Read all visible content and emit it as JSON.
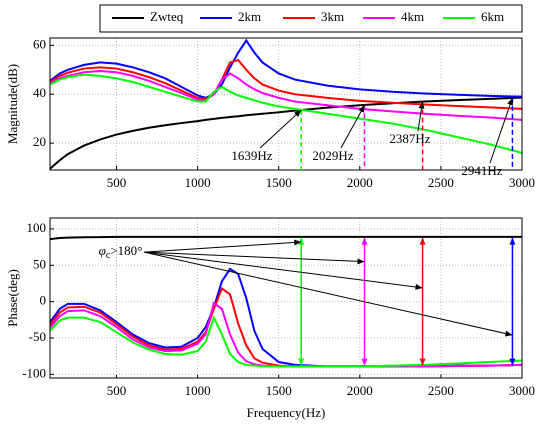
{
  "chart_data": [
    {
      "type": "line",
      "ylabel": "Magnitude(dB)",
      "x": [
        90,
        150,
        200,
        300,
        400,
        500,
        600,
        700,
        800,
        900,
        1000,
        1050,
        1100,
        1150,
        1200,
        1250,
        1300,
        1350,
        1400,
        1500,
        1600,
        1800,
        2000,
        2200,
        2400,
        2600,
        2800,
        3000
      ],
      "xlim": [
        90,
        3000
      ],
      "xticks": [
        500,
        1000,
        1500,
        2000,
        2500,
        3000
      ],
      "ylim": [
        9,
        63
      ],
      "yticks": [
        20,
        40,
        60
      ],
      "grid": true,
      "series": [
        {
          "name": "Zwteq",
          "color": "#000000",
          "values": [
            9.5,
            13,
            15.5,
            19,
            21.5,
            23.5,
            25,
            26.3,
            27.3,
            28.2,
            29,
            29.5,
            29.9,
            30.3,
            30.7,
            31,
            31.4,
            31.7,
            32,
            32.6,
            33.3,
            34.5,
            35.5,
            36.3,
            37,
            37.6,
            38.1,
            38.6
          ]
        },
        {
          "name": "2km",
          "color": "#0000ff",
          "values": [
            45.5,
            48.5,
            50,
            52,
            53,
            52.5,
            51,
            49,
            46.5,
            43,
            39.5,
            38.5,
            40,
            44,
            51,
            57,
            62,
            57,
            53,
            48.5,
            46,
            43.5,
            42,
            41,
            40.3,
            39.8,
            39.3,
            39
          ]
        },
        {
          "name": "3km",
          "color": "#ff0000",
          "values": [
            45,
            47.5,
            48.8,
            50.5,
            51,
            50.5,
            49,
            47,
            44.5,
            41.5,
            38.5,
            38,
            40,
            46,
            53,
            54,
            50,
            46.5,
            44,
            41.5,
            40,
            38.5,
            37.3,
            36.5,
            35.8,
            35.2,
            34.6,
            34
          ]
        },
        {
          "name": "4km",
          "color": "#ff00ff",
          "values": [
            44.5,
            46.5,
            47.5,
            49,
            49.5,
            49,
            47.5,
            45.5,
            43,
            40.5,
            37.8,
            37.5,
            40,
            46,
            48.5,
            46.5,
            44,
            42,
            40.5,
            38.5,
            37,
            35.5,
            34,
            33,
            32,
            31.2,
            30.5,
            29.5
          ]
        },
        {
          "name": "6km",
          "color": "#00ff00",
          "values": [
            44,
            46,
            47,
            48,
            47.5,
            46.5,
            45,
            43,
            41,
            39,
            37,
            37,
            41,
            43,
            41,
            39.5,
            38.5,
            37.5,
            36.5,
            35,
            34,
            32,
            30,
            28,
            25.5,
            22.5,
            19.5,
            16
          ]
        }
      ],
      "annotations": [
        {
          "text": "1639Hz",
          "x": 1639,
          "y": 33.5,
          "color": "#00ff00"
        },
        {
          "text": "2029Hz",
          "x": 2029,
          "y": 35.5,
          "color": "#ff00ff"
        },
        {
          "text": "2387Hz",
          "x": 2387,
          "y": 37,
          "color": "#ff0000"
        },
        {
          "text": "2941Hz",
          "x": 2941,
          "y": 38.5,
          "color": "#0000ff"
        }
      ]
    },
    {
      "type": "line",
      "ylabel": "Phase(deg)",
      "xlabel": "Frequency(Hz)",
      "x": [
        90,
        150,
        200,
        300,
        400,
        500,
        600,
        700,
        800,
        900,
        1000,
        1050,
        1100,
        1150,
        1200,
        1250,
        1300,
        1350,
        1400,
        1500,
        1600,
        1800,
        2000,
        2200,
        2400,
        2600,
        2800,
        3000
      ],
      "xlim": [
        90,
        3000
      ],
      "xticks": [
        500,
        1000,
        1500,
        2000,
        2500,
        3000
      ],
      "ylim": [
        -105,
        115
      ],
      "yticks": [
        -100,
        -50,
        0,
        50,
        100
      ],
      "grid": true,
      "series": [
        {
          "color": "#000000",
          "values": [
            86,
            87.5,
            88,
            88.5,
            88.7,
            89,
            89,
            89,
            89,
            89,
            89,
            89,
            89,
            89,
            89,
            89,
            89,
            89,
            89,
            89,
            89,
            89,
            89,
            89,
            89,
            89,
            89,
            89
          ]
        },
        {
          "color": "#0000ff",
          "values": [
            -28,
            -10,
            -3,
            -3,
            -12,
            -28,
            -45,
            -57,
            -63,
            -62,
            -50,
            -35,
            -8,
            28,
            45,
            38,
            5,
            -40,
            -65,
            -83,
            -87,
            -89,
            -89,
            -89,
            -89,
            -88,
            -88,
            -87
          ]
        },
        {
          "color": "#ff0000",
          "values": [
            -32,
            -15,
            -8,
            -7,
            -15,
            -31,
            -48,
            -60,
            -66,
            -65,
            -55,
            -42,
            -10,
            18,
            10,
            -30,
            -60,
            -78,
            -84,
            -88,
            -89,
            -89,
            -89,
            -89,
            -89,
            -88.5,
            -88,
            -87
          ]
        },
        {
          "color": "#ff00ff",
          "values": [
            -36,
            -20,
            -13,
            -12,
            -20,
            -35,
            -52,
            -63,
            -68,
            -67,
            -58,
            -45,
            -2,
            -10,
            -45,
            -70,
            -82,
            -86,
            -88,
            -89,
            -89,
            -89,
            -89,
            -89,
            -89,
            -88.5,
            -88,
            -87
          ]
        },
        {
          "color": "#00ff00",
          "values": [
            -40,
            -26,
            -22,
            -22,
            -28,
            -42,
            -56,
            -66,
            -72,
            -73,
            -68,
            -55,
            -22,
            -45,
            -72,
            -83,
            -87,
            -88,
            -89,
            -89,
            -89,
            -89,
            -89,
            -88,
            -87,
            -85,
            -83,
            -81
          ]
        }
      ],
      "spans": [
        -88,
        88
      ],
      "annotations": [
        {
          "symbol": "φ",
          "subscript": "c",
          "text": ">180°",
          "x": 390,
          "y": 68,
          "targets": [
            [
              1639,
              82
            ],
            [
              2029,
              55
            ],
            [
              2387,
              19
            ],
            [
              2941,
              -46
            ]
          ]
        }
      ]
    }
  ]
}
